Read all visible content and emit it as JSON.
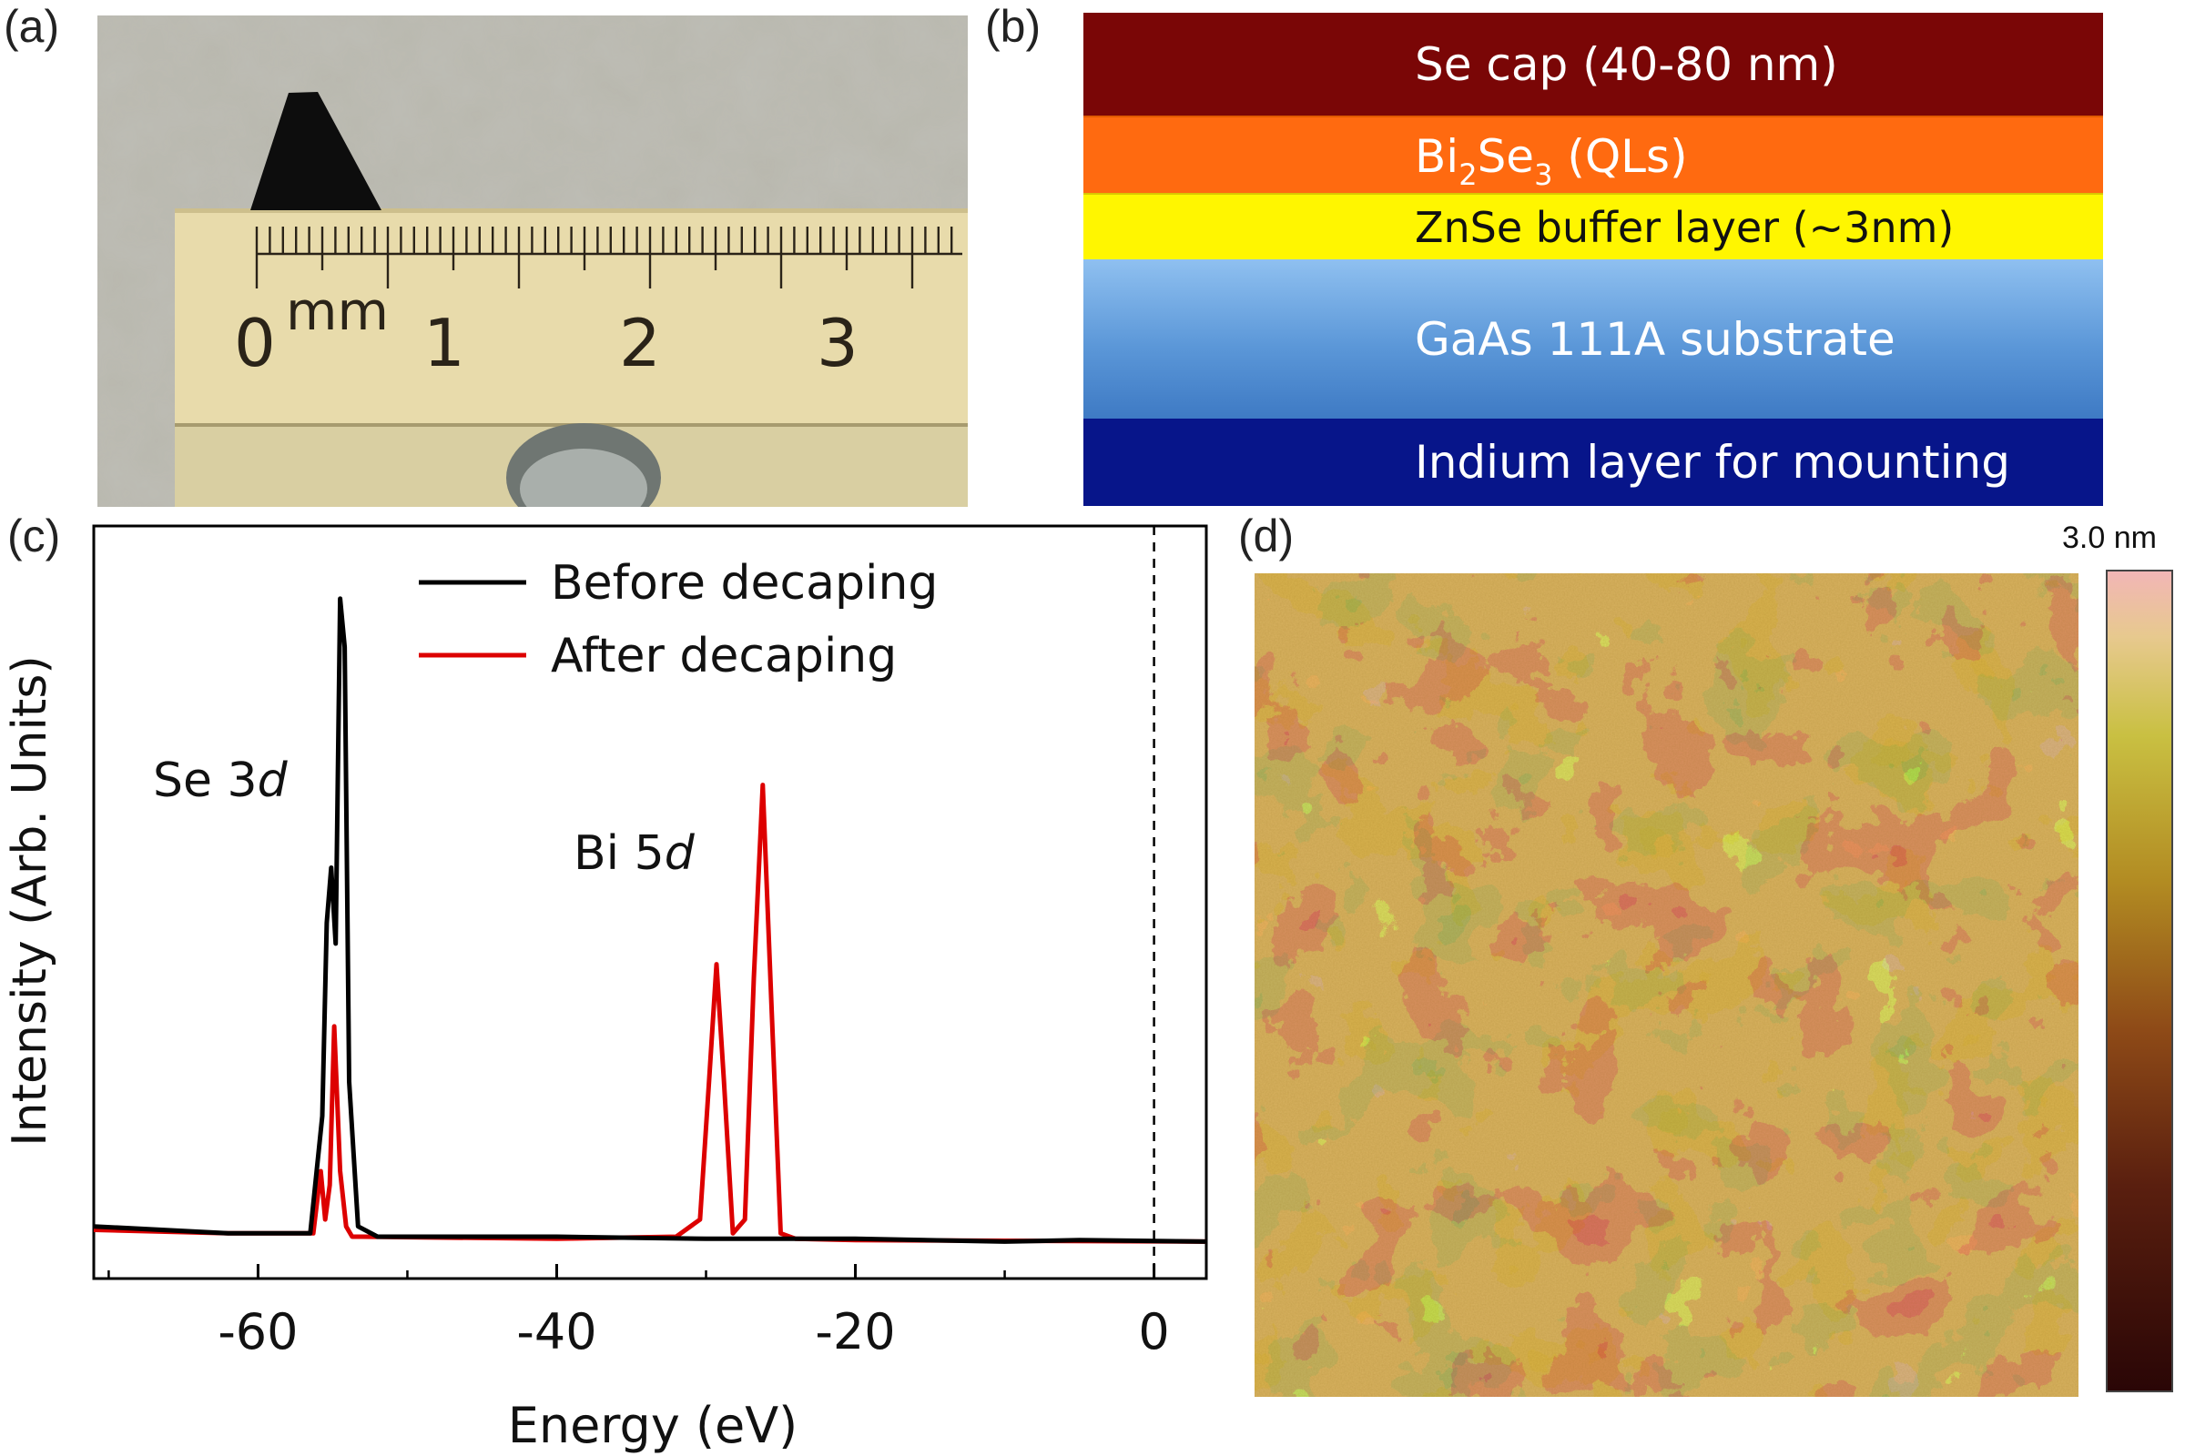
{
  "panels": {
    "a": {
      "label": "(a)",
      "ruler_unit": "mm",
      "ruler_numbers": [
        "0",
        "1",
        "2",
        "3"
      ]
    },
    "b": {
      "label": "(b)"
    },
    "c": {
      "label": "(c)"
    },
    "d": {
      "label": "(d)"
    }
  },
  "layers": {
    "se_cap": "Se cap (40-80 nm)",
    "bi2se3": {
      "a": "Bi",
      "s1": "2",
      "b": "Se",
      "s2": "3",
      "c": " (QLs)"
    },
    "znse": "ZnSe buffer layer (~3nm)",
    "gaas": "GaAs 111A substrate",
    "indium": "Indium layer for mounting"
  },
  "colorbar": {
    "max_label": "3.0 nm"
  },
  "chart_data": {
    "type": "line",
    "xlabel": "Energy (eV)",
    "ylabel": "Intensity (Arb. Units)",
    "xlim": [
      -71,
      3.5
    ],
    "ylim": [
      0,
      1
    ],
    "xticks": [
      -60,
      -40,
      -20,
      0
    ],
    "tick_labels": [
      "-60",
      "-40",
      "-20",
      "0"
    ],
    "zero_line": true,
    "annotations": [
      {
        "text": "Se 3",
        "italic": "d",
        "x": -70,
        "y": 0.67
      },
      {
        "text": "Bi 5",
        "italic": "d",
        "x": -40,
        "y": 0.55
      }
    ],
    "series": [
      {
        "name": "Before decaping",
        "color": "#000000",
        "x": [
          -71,
          -62,
          -56.5,
          -55.7,
          -55.4,
          -55.1,
          -54.8,
          -54.5,
          -54.2,
          -53.9,
          -53.3,
          -52,
          -40,
          -30,
          -20,
          -10,
          -5,
          3.5
        ],
        "y": [
          0.04,
          0.03,
          0.03,
          0.2,
          0.48,
          0.56,
          0.45,
          0.95,
          0.88,
          0.25,
          0.04,
          0.025,
          0.025,
          0.022,
          0.022,
          0.018,
          0.02,
          0.018
        ]
      },
      {
        "name": "After decaping",
        "color": "#dd0000",
        "x": [
          -71,
          -62,
          -56.3,
          -55.8,
          -55.5,
          -55.2,
          -54.9,
          -54.5,
          -54.1,
          -53.7,
          -53,
          -40,
          -32,
          -30.4,
          -29.8,
          -29.3,
          -28.8,
          -28.2,
          -27.4,
          -26.8,
          -26.2,
          -25.6,
          -25,
          -24,
          -20,
          3.5
        ],
        "y": [
          0.035,
          0.03,
          0.03,
          0.12,
          0.05,
          0.1,
          0.33,
          0.12,
          0.04,
          0.025,
          0.025,
          0.022,
          0.025,
          0.05,
          0.25,
          0.42,
          0.25,
          0.03,
          0.05,
          0.4,
          0.68,
          0.35,
          0.03,
          0.022,
          0.02,
          0.018
        ]
      }
    ]
  }
}
